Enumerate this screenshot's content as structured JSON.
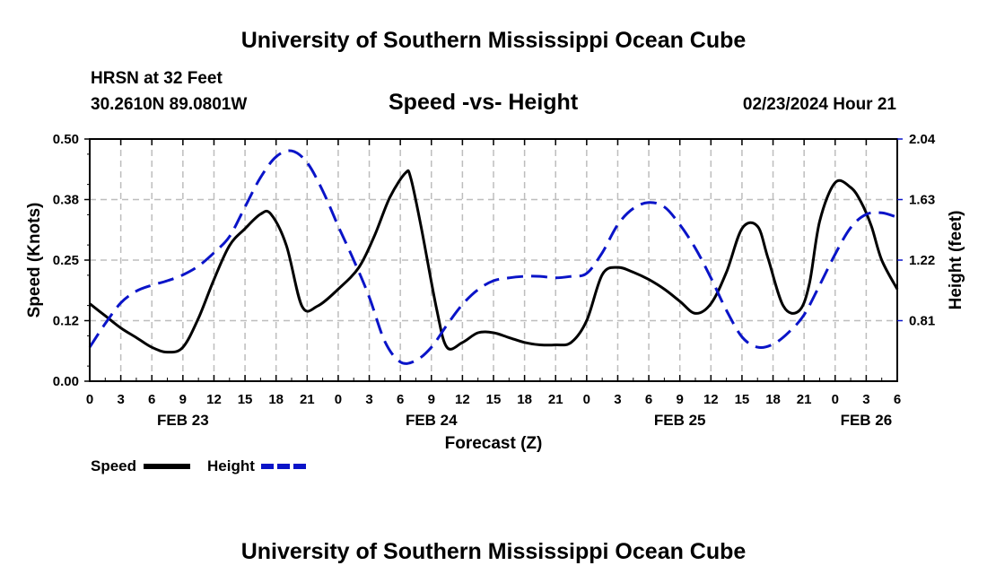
{
  "header": {
    "title_top": "University of Southern Mississippi Ocean Cube",
    "title_bottom": "University of Southern Mississippi Ocean Cube",
    "station": "HRSN at 32 Feet",
    "coords": "30.2610N  89.0801W",
    "chart_title": "Speed -vs- Height",
    "timestamp": "02/23/2024 Hour 21"
  },
  "legend": {
    "speed_label": "Speed",
    "height_label": "Height"
  },
  "colors": {
    "speed": "#000000",
    "height": "#0a14c8",
    "grid": "#bdbdbd"
  },
  "chart_data": {
    "type": "line",
    "title": "Speed -vs- Height",
    "xlabel": "Forecast (Z)",
    "ylabel": "Speed (Knots)",
    "y2label": "Height (feet)",
    "x_unit": "hours since FEB 23 00Z",
    "xlim": [
      0,
      78
    ],
    "ylim": [
      0,
      0.5
    ],
    "y2lim": [
      0.4,
      2.04
    ],
    "x_ticks": [
      0,
      3,
      6,
      9,
      12,
      15,
      18,
      21,
      24,
      27,
      30,
      33,
      36,
      39,
      42,
      45,
      48,
      51,
      54,
      57,
      60,
      63,
      66,
      69,
      72,
      75,
      78
    ],
    "x_tick_labels": [
      "0",
      "3",
      "6",
      "9",
      "12",
      "15",
      "18",
      "21",
      "0",
      "3",
      "6",
      "9",
      "12",
      "15",
      "18",
      "21",
      "0",
      "3",
      "6",
      "9",
      "12",
      "15",
      "18",
      "21",
      "0",
      "3",
      "6"
    ],
    "date_labels": [
      {
        "x": 9,
        "label": "FEB 23"
      },
      {
        "x": 33,
        "label": "FEB 24"
      },
      {
        "x": 57,
        "label": "FEB 25"
      },
      {
        "x": 75,
        "label": "FEB 26"
      }
    ],
    "y_ticks": [
      0,
      0.125,
      0.25,
      0.375,
      0.5
    ],
    "y_tick_labels": [
      "0.00",
      "0.12",
      "0.25",
      "0.38",
      "0.50"
    ],
    "y2_ticks": [
      0.81,
      1.22,
      1.63,
      2.04
    ],
    "y2_tick_labels": [
      "0.81",
      "1.22",
      "1.63",
      "2.04"
    ],
    "grid": true,
    "series": [
      {
        "name": "Speed",
        "axis": "left",
        "style": "solid",
        "x": [
          0,
          1.5,
          3,
          4.5,
          6,
          7.5,
          9,
          10.5,
          12,
          13.5,
          15,
          16.5,
          17.5,
          19,
          20.5,
          22,
          24,
          26,
          27.5,
          29,
          30.5,
          31,
          32,
          33.5,
          34.5,
          36,
          37.5,
          39,
          40.5,
          42,
          43.5,
          45,
          46.5,
          48,
          49.5,
          51,
          52.5,
          54,
          55.5,
          57,
          58.5,
          60,
          61.5,
          63,
          64.5,
          65.5,
          67,
          68.5,
          69.5,
          70.5,
          72,
          73.5,
          74.5,
          75.5,
          76.5,
          78
        ],
        "values": [
          0.16,
          0.135,
          0.11,
          0.09,
          0.07,
          0.06,
          0.07,
          0.13,
          0.21,
          0.28,
          0.315,
          0.345,
          0.345,
          0.28,
          0.155,
          0.155,
          0.19,
          0.235,
          0.3,
          0.38,
          0.43,
          0.42,
          0.32,
          0.15,
          0.07,
          0.08,
          0.1,
          0.1,
          0.09,
          0.08,
          0.075,
          0.075,
          0.08,
          0.125,
          0.22,
          0.235,
          0.225,
          0.21,
          0.19,
          0.165,
          0.14,
          0.16,
          0.225,
          0.315,
          0.32,
          0.255,
          0.155,
          0.145,
          0.2,
          0.33,
          0.41,
          0.4,
          0.37,
          0.32,
          0.25,
          0.19
        ]
      },
      {
        "name": "Height",
        "axis": "right",
        "style": "dashed",
        "x": [
          0,
          1.5,
          3,
          4.5,
          6,
          7.5,
          9,
          10.5,
          12,
          13.5,
          15,
          16.5,
          18,
          19.5,
          21,
          22.5,
          24,
          25.5,
          27,
          28.5,
          30,
          31.5,
          33,
          34.5,
          36,
          37.5,
          39,
          40.5,
          42,
          43.5,
          45,
          46.5,
          48,
          49.5,
          51,
          52.5,
          54,
          55.5,
          57,
          58.5,
          60,
          61.5,
          63,
          64.5,
          66,
          67.5,
          69,
          70.5,
          72,
          73.5,
          75,
          76.5,
          78
        ],
        "values": [
          0.63,
          0.79,
          0.93,
          1.01,
          1.05,
          1.08,
          1.12,
          1.18,
          1.27,
          1.38,
          1.58,
          1.78,
          1.92,
          1.96,
          1.88,
          1.69,
          1.45,
          1.22,
          0.97,
          0.67,
          0.53,
          0.54,
          0.63,
          0.78,
          0.92,
          1.02,
          1.08,
          1.1,
          1.11,
          1.11,
          1.1,
          1.11,
          1.13,
          1.27,
          1.46,
          1.57,
          1.61,
          1.58,
          1.46,
          1.3,
          1.1,
          0.88,
          0.7,
          0.63,
          0.65,
          0.73,
          0.85,
          1.05,
          1.26,
          1.44,
          1.53,
          1.54,
          1.51
        ]
      }
    ]
  }
}
